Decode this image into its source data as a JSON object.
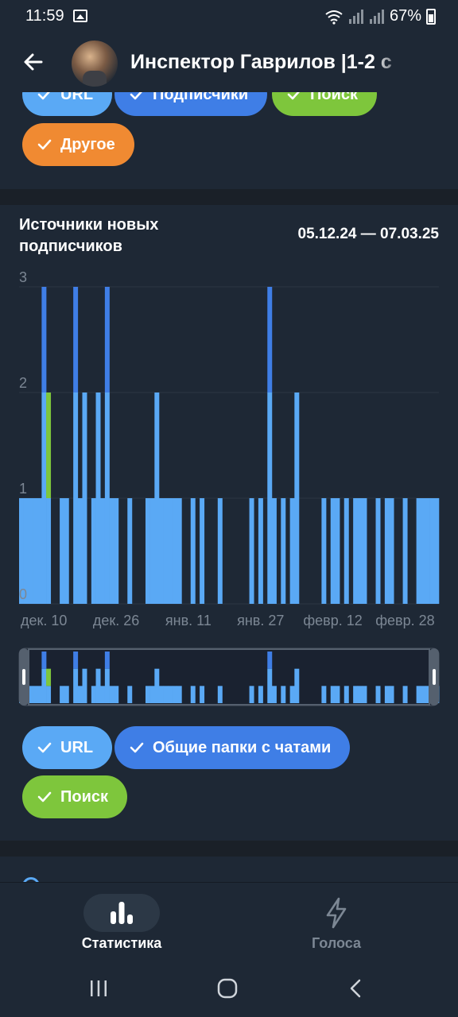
{
  "status_bar": {
    "time": "11:59",
    "battery": "67%"
  },
  "header": {
    "title": "Инспектор Гаврилов |1-2 с"
  },
  "top_chips": [
    {
      "label": "URL",
      "color": "#5aa9f5"
    },
    {
      "label": "Подписчики",
      "color": "#3f7ee6"
    },
    {
      "label": "Поиск",
      "color": "#7ec63c"
    },
    {
      "label": "Другое",
      "color": "#f08a32"
    }
  ],
  "chart_section": {
    "title": "Источники новых подписчиков",
    "date_range": "05.12.24 — 07.03.25"
  },
  "chart_data": {
    "type": "bar",
    "stacked": true,
    "title": "Источники новых подписчиков",
    "ylim": [
      0,
      3
    ],
    "y_ticks": [
      "0",
      "1",
      "2",
      "3"
    ],
    "x_ticks": [
      "дек. 10",
      "дек. 26",
      "янв. 11",
      "янв. 27",
      "февр. 12",
      "февр. 28"
    ],
    "categories": [
      "05.12",
      "06.12",
      "07.12",
      "08.12",
      "09.12",
      "10.12",
      "11.12",
      "12.12",
      "13.12",
      "14.12",
      "15.12",
      "16.12",
      "17.12",
      "18.12",
      "19.12",
      "20.12",
      "21.12",
      "22.12",
      "23.12",
      "24.12",
      "25.12",
      "26.12",
      "27.12",
      "28.12",
      "29.12",
      "30.12",
      "31.12",
      "01.01",
      "02.01",
      "03.01",
      "04.01",
      "05.01",
      "06.01",
      "07.01",
      "08.01",
      "09.01",
      "10.01",
      "11.01",
      "12.01",
      "13.01",
      "14.01",
      "15.01",
      "16.01",
      "17.01",
      "18.01",
      "19.01",
      "20.01",
      "21.01",
      "22.01",
      "23.01",
      "24.01",
      "25.01",
      "26.01",
      "27.01",
      "28.01",
      "29.01",
      "30.01",
      "31.01",
      "01.02",
      "02.02",
      "03.02",
      "04.02",
      "05.02",
      "06.02",
      "07.02",
      "08.02",
      "09.02",
      "10.02",
      "11.02",
      "12.02",
      "13.02",
      "14.02",
      "15.02",
      "16.02",
      "17.02",
      "18.02",
      "19.02",
      "20.02",
      "21.02",
      "22.02",
      "23.02",
      "24.02",
      "25.02",
      "26.02",
      "27.02",
      "28.02",
      "01.03",
      "02.03",
      "03.03",
      "04.03",
      "05.03",
      "06.03",
      "07.03"
    ],
    "series": [
      {
        "name": "URL",
        "color": "#5aa9f5",
        "values": [
          1,
          1,
          1,
          1,
          1,
          2,
          1,
          0,
          0,
          1,
          1,
          0,
          2,
          1,
          2,
          0,
          1,
          2,
          1,
          2,
          1,
          1,
          0,
          0,
          1,
          0,
          0,
          0,
          1,
          1,
          2,
          1,
          1,
          1,
          1,
          1,
          0,
          0,
          1,
          0,
          1,
          0,
          0,
          0,
          1,
          0,
          0,
          0,
          0,
          0,
          0,
          1,
          0,
          1,
          0,
          2,
          1,
          0,
          1,
          0,
          1,
          2,
          0,
          0,
          0,
          0,
          0,
          1,
          0,
          1,
          1,
          0,
          1,
          0,
          1,
          1,
          1,
          0,
          0,
          1,
          0,
          1,
          1,
          0,
          0,
          1,
          0,
          0,
          1,
          1,
          1,
          1,
          1
        ]
      },
      {
        "name": "Общие папки с чатами",
        "color": "#3f7ee6",
        "values": [
          0,
          0,
          0,
          0,
          0,
          1,
          0,
          0,
          0,
          0,
          0,
          0,
          1,
          0,
          0,
          0,
          0,
          0,
          0,
          1,
          0,
          0,
          0,
          0,
          0,
          0,
          0,
          0,
          0,
          0,
          0,
          0,
          0,
          0,
          0,
          0,
          0,
          0,
          0,
          0,
          0,
          0,
          0,
          0,
          0,
          0,
          0,
          0,
          0,
          0,
          0,
          0,
          0,
          0,
          0,
          1,
          0,
          0,
          0,
          0,
          0,
          0,
          0,
          0,
          0,
          0,
          0,
          0,
          0,
          0,
          0,
          0,
          0,
          0,
          0,
          0,
          0,
          0,
          0,
          0,
          0,
          0,
          0,
          0,
          0,
          0,
          0,
          0,
          0,
          0,
          0,
          0,
          0
        ]
      },
      {
        "name": "Поиск",
        "color": "#7ec63c",
        "values": [
          0,
          0,
          0,
          0,
          0,
          0,
          1,
          0,
          0,
          0,
          0,
          0,
          0,
          0,
          0,
          0,
          0,
          0,
          0,
          0,
          0,
          0,
          0,
          0,
          0,
          0,
          0,
          0,
          0,
          0,
          0,
          0,
          0,
          0,
          0,
          0,
          0,
          0,
          0,
          0,
          0,
          0,
          0,
          0,
          0,
          0,
          0,
          0,
          0,
          0,
          0,
          0,
          0,
          0,
          0,
          0,
          0,
          0,
          0,
          0,
          0,
          0,
          0,
          0,
          0,
          0,
          0,
          0,
          0,
          0,
          0,
          0,
          0,
          0,
          0,
          0,
          0,
          0,
          0,
          0,
          0,
          0,
          0,
          0,
          0,
          0,
          0,
          0,
          0,
          0,
          0,
          0,
          0
        ]
      }
    ]
  },
  "bottom_chips": [
    {
      "label": "URL",
      "color": "#5aa9f5"
    },
    {
      "label": "Общие папки с чатами",
      "color": "#3f7ee6"
    },
    {
      "label": "Поиск",
      "color": "#7ec63c"
    }
  ],
  "bottom_nav": {
    "items": [
      {
        "label": "Статистика",
        "icon": "bar-chart-icon",
        "active": true
      },
      {
        "label": "Голоса",
        "icon": "lightning-icon",
        "active": false
      }
    ]
  }
}
